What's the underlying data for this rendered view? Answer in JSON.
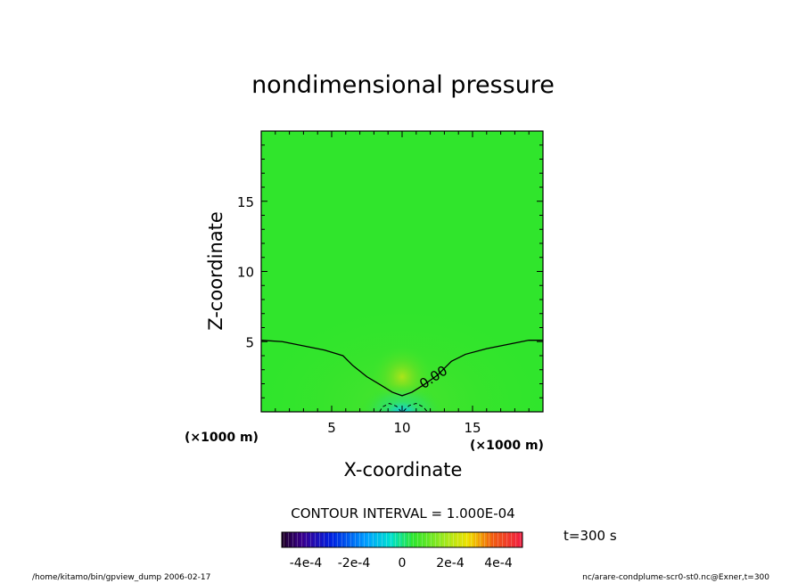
{
  "chart_data": {
    "type": "heatmap",
    "title": "nondimensional pressure",
    "xlabel": "X-coordinate",
    "ylabel": "Z-coordinate",
    "x_unit": "(×1000 m)",
    "z_unit": "(×1000 m)",
    "xlim": [
      0,
      20
    ],
    "ylim": [
      0,
      20
    ],
    "x_ticks": [
      "5",
      "10",
      "15"
    ],
    "y_ticks": [
      "5",
      "10",
      "15"
    ],
    "contour_label": "0.00",
    "contour_zero_line": [
      [
        0,
        5.1
      ],
      [
        1.5,
        5.0
      ],
      [
        3,
        4.7
      ],
      [
        4.5,
        4.4
      ],
      [
        5.8,
        4.0
      ],
      [
        6.5,
        3.3
      ],
      [
        7.5,
        2.5
      ],
      [
        8.5,
        1.9
      ],
      [
        9.3,
        1.4
      ],
      [
        10,
        1.15
      ],
      [
        10.7,
        1.4
      ],
      [
        11.5,
        1.9
      ],
      [
        12.5,
        2.6
      ],
      [
        13.5,
        3.6
      ],
      [
        14.5,
        4.1
      ],
      [
        16,
        4.5
      ],
      [
        17.5,
        4.8
      ],
      [
        19,
        5.1
      ],
      [
        20,
        5.1
      ]
    ],
    "negative_contours": [
      {
        "points": [
          [
            8.4,
            0
          ],
          [
            8.6,
            0.35
          ],
          [
            9.1,
            0.6
          ],
          [
            9.6,
            0.4
          ],
          [
            9.9,
            0.05
          ]
        ]
      },
      {
        "points": [
          [
            10.1,
            0.05
          ],
          [
            10.5,
            0.45
          ],
          [
            11.0,
            0.6
          ],
          [
            11.5,
            0.35
          ],
          [
            11.8,
            0
          ]
        ]
      }
    ],
    "contour_interval_text": "CONTOUR INTERVAL = 1.000E-04",
    "colorbar_range": [
      -0.0005,
      0.0005
    ],
    "colorbar_labels": [
      "-4e-4",
      "-2e-4",
      "0",
      "2e-4",
      "4e-4"
    ],
    "colorbar_label_values": [
      -0.0004,
      -0.0002,
      0,
      0.0002,
      0.0004
    ],
    "background_color": "#30e52c"
  },
  "time_label": "t=300 s",
  "footer_left": "/home/kitamo/bin/gpview_dump  2006-02-17",
  "footer_right": "nc/arare-condplume-scr0-st0.nc@Exner,t=300"
}
